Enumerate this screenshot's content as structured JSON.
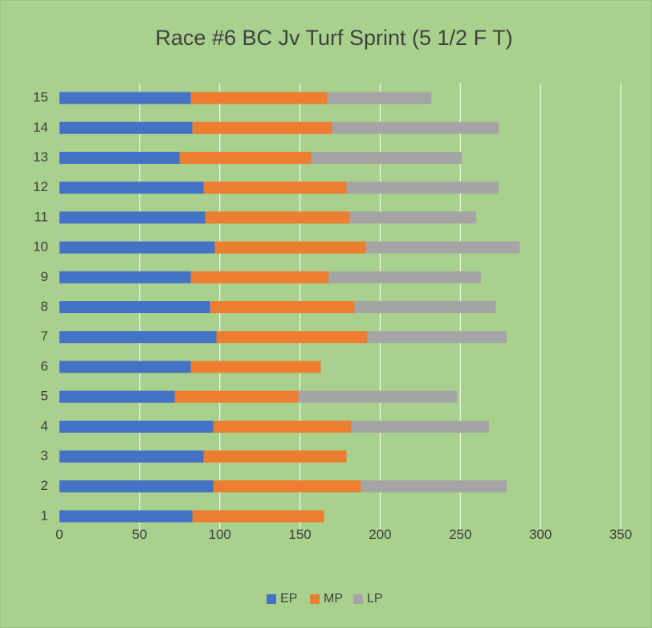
{
  "chart_data": {
    "type": "stacked-barh",
    "title": "Race #6 BC Jv Turf Sprint (5 1/2 F T)",
    "categories": [
      "1",
      "2",
      "3",
      "4",
      "5",
      "6",
      "7",
      "8",
      "9",
      "10",
      "11",
      "12",
      "13",
      "14",
      "15"
    ],
    "series": [
      {
        "name": "EP",
        "color": "#4472c4",
        "values": [
          83,
          96,
          90,
          96,
          72,
          82,
          98,
          94,
          82,
          97,
          91,
          90,
          75,
          83,
          82
        ]
      },
      {
        "name": "MP",
        "color": "#ed7d31",
        "values": [
          82,
          92,
          89,
          86,
          77,
          81,
          94,
          90,
          86,
          94,
          90,
          89,
          82,
          87,
          85
        ]
      },
      {
        "name": "LP",
        "color": "#a5a5a5",
        "values": [
          0,
          91,
          0,
          86,
          99,
          0,
          87,
          88,
          95,
          96,
          79,
          95,
          94,
          104,
          65
        ]
      }
    ],
    "xlim": [
      0,
      350
    ],
    "xticks": [
      0,
      50,
      100,
      150,
      200,
      250,
      300,
      350
    ],
    "grid": true,
    "legend": "bottom"
  }
}
